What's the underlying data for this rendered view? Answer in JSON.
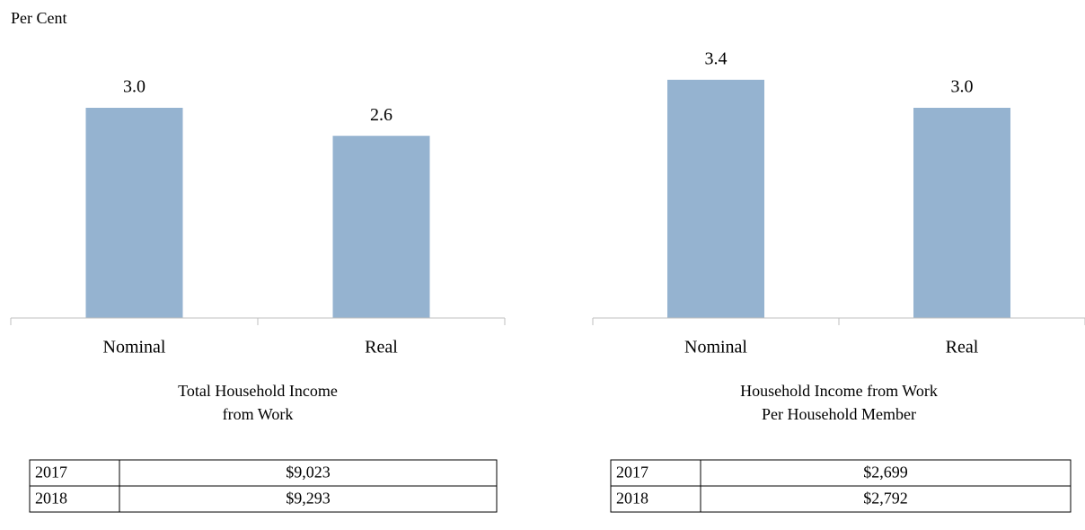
{
  "y_label": "Per Cent",
  "chart_data": [
    {
      "type": "bar",
      "title": [
        "Total Household Income",
        "from Work"
      ],
      "categories": [
        "Nominal",
        "Real"
      ],
      "values": [
        3.0,
        2.6
      ],
      "value_labels": [
        "3.0",
        "2.6"
      ],
      "color": "#95b3d0",
      "ylim": [
        0,
        4
      ]
    },
    {
      "type": "bar",
      "title": [
        "Household Income from Work",
        "Per Household Member"
      ],
      "categories": [
        "Nominal",
        "Real"
      ],
      "values": [
        3.4,
        3.0
      ],
      "value_labels": [
        "3.4",
        "3.0"
      ],
      "color": "#95b3d0",
      "ylim": [
        0,
        4
      ]
    }
  ],
  "tables": [
    {
      "rows": [
        [
          "2017",
          "$9,023"
        ],
        [
          "2018",
          "$9,293"
        ]
      ]
    },
    {
      "rows": [
        [
          "2017",
          "$2,699"
        ],
        [
          "2018",
          "$2,792"
        ]
      ]
    }
  ]
}
